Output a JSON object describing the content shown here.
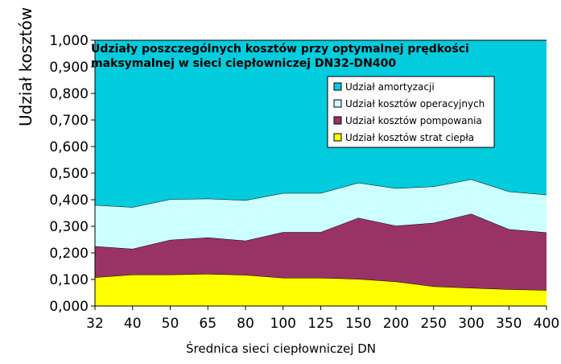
{
  "chart_data": {
    "type": "area",
    "stacked": true,
    "title_line1": "Udziały poszczególnych kosztów przy optymalnej prędkości",
    "title_line2": "maksymalnej  w sieci ciepłowniczej DN32-DN400",
    "xlabel": "Średnica sieci ciepłowniczej DN",
    "ylabel": "Udział kosztów",
    "ylim": [
      0,
      1
    ],
    "yticks": [
      "0,000",
      "0,100",
      "0,200",
      "0,300",
      "0,400",
      "0,500",
      "0,600",
      "0,700",
      "0,800",
      "0,900",
      "1,000"
    ],
    "categories": [
      "32",
      "40",
      "50",
      "65",
      "80",
      "100",
      "125",
      "150",
      "200",
      "250",
      "300",
      "350",
      "400"
    ],
    "legend_position": "upper-right",
    "series": [
      {
        "name": "Udział kosztów strat ciepła",
        "color": "#ffff00",
        "values": [
          0.108,
          0.118,
          0.118,
          0.121,
          0.117,
          0.106,
          0.106,
          0.102,
          0.092,
          0.074,
          0.068,
          0.063,
          0.06
        ]
      },
      {
        "name": "Udział kosztów pompowania",
        "color": "#993366",
        "values": [
          0.117,
          0.097,
          0.131,
          0.137,
          0.129,
          0.172,
          0.172,
          0.23,
          0.21,
          0.239,
          0.279,
          0.226,
          0.217
        ]
      },
      {
        "name": "Udział kosztów operacyjnych",
        "color": "#ccffff",
        "values": [
          0.155,
          0.157,
          0.153,
          0.146,
          0.152,
          0.147,
          0.147,
          0.132,
          0.141,
          0.137,
          0.13,
          0.142,
          0.142
        ]
      },
      {
        "name": "Udział amortyzacji",
        "color": "#00ccdd",
        "values": [
          0.62,
          0.628,
          0.598,
          0.596,
          0.602,
          0.575,
          0.575,
          0.536,
          0.557,
          0.55,
          0.523,
          0.569,
          0.581
        ]
      }
    ]
  }
}
